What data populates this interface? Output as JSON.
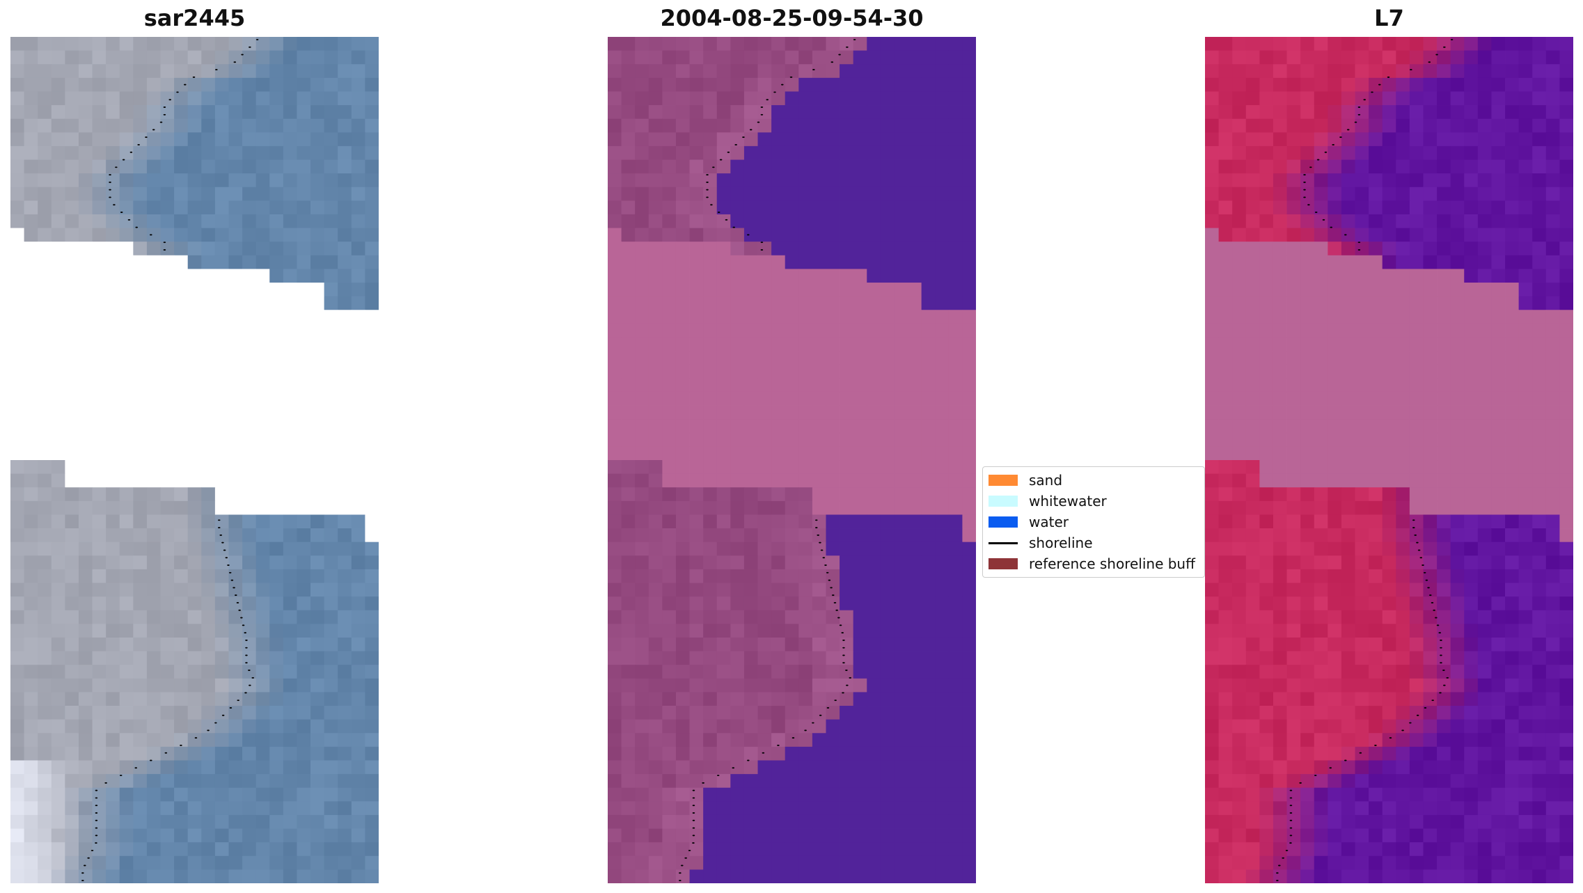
{
  "panels": [
    {
      "title": "sar2445",
      "kind": "rgb"
    },
    {
      "title": "2004-08-25-09-54-30",
      "kind": "classified"
    },
    {
      "title": "L7",
      "kind": "index"
    }
  ],
  "legend": {
    "items": [
      {
        "label": "sand",
        "type": "patch",
        "color": "#ff8a33"
      },
      {
        "label": "whitewater",
        "type": "patch",
        "color": "#c9fbff"
      },
      {
        "label": "water",
        "type": "patch",
        "color": "#0a5cf0"
      },
      {
        "label": "shoreline",
        "type": "line",
        "color": "#000000"
      },
      {
        "label": "reference shoreline buff",
        "type": "patch",
        "color": "#8e3438"
      }
    ]
  },
  "colors": {
    "rgb_land": "#a4a7b3",
    "rgb_water": "#6386ab",
    "class_land": "#94497f",
    "class_water": "#52239a",
    "class_cloud": "#b96597",
    "index_land": "#c82a5f",
    "index_water": "#6115a0",
    "shoreline": "#000000"
  }
}
